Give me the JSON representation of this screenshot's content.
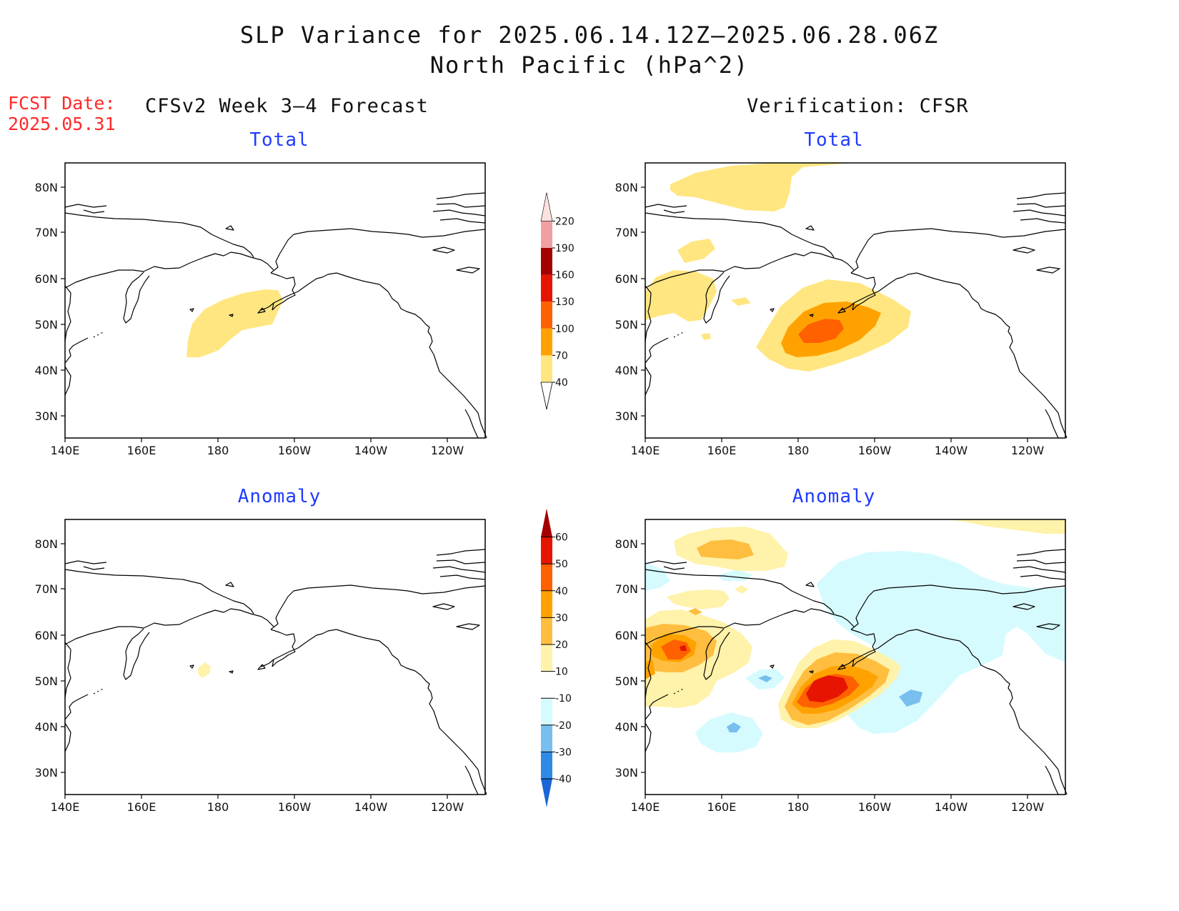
{
  "title": {
    "line1": "SLP Variance for 2025.06.14.12Z—2025.06.28.06Z",
    "line2": "North Pacific (hPa^2)"
  },
  "fcst_date": {
    "label": "FCST Date:",
    "value": "2025.05.31"
  },
  "columns": {
    "left": "CFSv2 Week 3—4 Forecast",
    "right": "Verification: CFSR"
  },
  "panel_titles": {
    "total": "Total",
    "anomaly": "Anomaly"
  },
  "axes": {
    "lon_labels": [
      "140E",
      "160E",
      "180",
      "160W",
      "140W",
      "120W"
    ],
    "lat_labels": [
      "80N",
      "70N",
      "60N",
      "50N",
      "40N",
      "30N"
    ]
  },
  "colorbar_total": {
    "levels": [
      "40",
      "70",
      "100",
      "130",
      "160",
      "190",
      "220"
    ],
    "colors": [
      "#ffe680",
      "#ffa200",
      "#ff6000",
      "#e61400",
      "#a50000",
      "#f0a0a0",
      "#fde1e1"
    ]
  },
  "colorbar_anomaly": {
    "levels": [
      "-40",
      "-30",
      "-20",
      "-10",
      "10",
      "20",
      "30",
      "40",
      "50",
      "60"
    ],
    "colors": [
      "#1a66d6",
      "#2e8ae6",
      "#78bfef",
      "#d6fbff",
      "#ffffff",
      "#fff2aa",
      "#ffbe40",
      "#ffa200",
      "#ff6000",
      "#e61400",
      "#a50000"
    ]
  },
  "legend_colors": {
    "c40": "#ffe680",
    "c70": "#ffbe40",
    "c100": "#ff6000",
    "a10": "#fff2aa",
    "a20": "#ffbe40",
    "a30": "#ffa200",
    "a40": "#ff6000",
    "a50": "#e61400",
    "an10": "#d6fbff",
    "an20": "#78bfef",
    "title_blue": "#1f3bff",
    "fcst_red": "#ff2a2a"
  }
}
